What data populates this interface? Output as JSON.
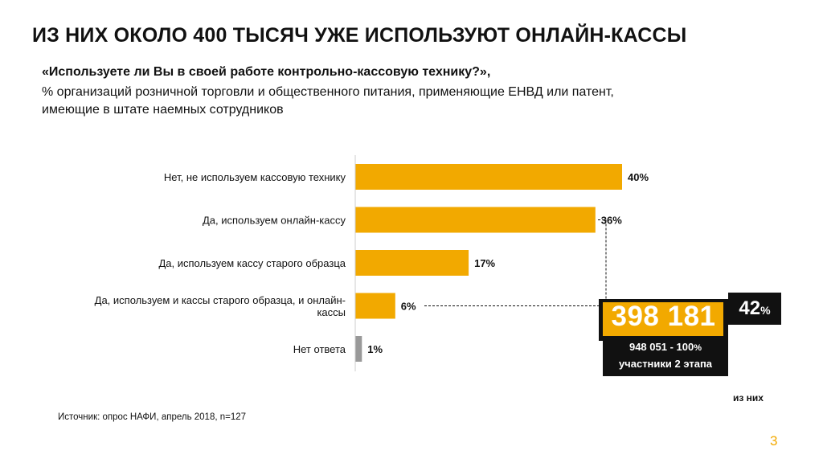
{
  "title": "ИЗ НИХ ОКОЛО 400 ТЫСЯЧ УЖЕ ИСПОЛЬЗУЮТ ОНЛАЙН-КАССЫ",
  "question": "«Используете ли Вы в своей работе контрольно-кассовую технику?»,",
  "subtitle_line1": "% организаций розничной торговли и общественного питания, применяющие ЕНВД или патент,",
  "subtitle_line2": "имеющие в штате наемных сотрудников",
  "chart_data": {
    "type": "bar",
    "orientation": "horizontal",
    "categories": [
      [
        "Нет, не используем кассовую технику"
      ],
      [
        "Да, используем онлайн-кассу"
      ],
      [
        "Да, используем кассу старого образца"
      ],
      [
        "Да, используем и кассы старого образца, и онлайн-",
        "кассы"
      ],
      [
        "Нет ответа"
      ]
    ],
    "values": [
      40,
      36,
      17,
      6,
      1
    ],
    "value_labels": [
      "40%",
      "36%",
      "17%",
      "6%",
      "1%"
    ],
    "colors": [
      "#f2a900",
      "#f2a900",
      "#f2a900",
      "#f2a900",
      "#999999"
    ],
    "xlim": [
      0,
      40
    ],
    "grid": false
  },
  "callout": {
    "main_value": "398 181",
    "pct_value": "42",
    "pct_sign": "%",
    "total_value": "948 051",
    "total_sep": " - ",
    "total_pct_num": "100",
    "total_pct_sign": "%",
    "total_line2": "участники 2 этапа",
    "of_them": "из них"
  },
  "source": "Источник: опрос НАФИ, апрель 2018, n=127",
  "page_number": "3",
  "colors": {
    "accent": "#f2a900",
    "dark": "#111111",
    "gray": "#999999"
  }
}
